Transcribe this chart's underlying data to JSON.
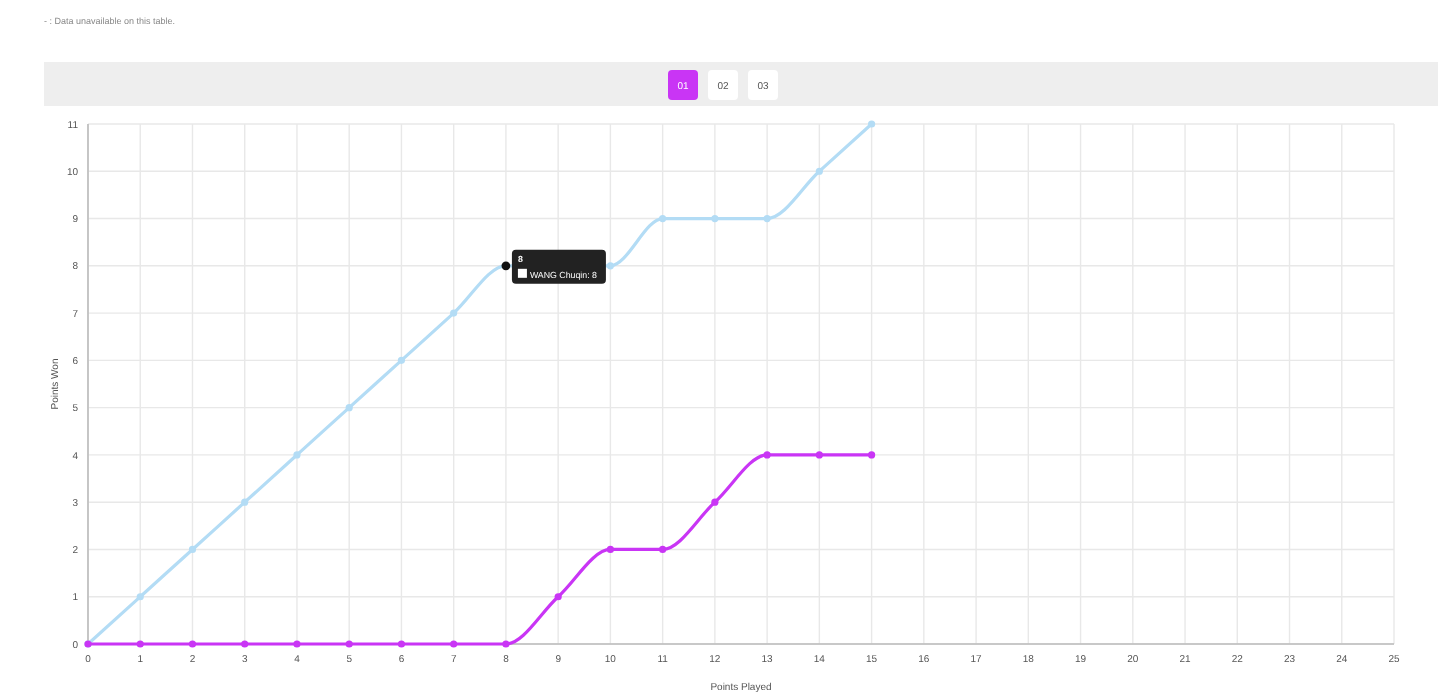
{
  "chart_data": {
    "type": "line",
    "xlabel": "Points Played",
    "ylabel": "Points Won",
    "x": [
      0,
      1,
      2,
      3,
      4,
      5,
      6,
      7,
      8,
      9,
      10,
      11,
      12,
      13,
      14,
      15
    ],
    "series": [
      {
        "color": "#b3dcf5",
        "values": [
          0,
          1,
          2,
          3,
          4,
          5,
          6,
          7,
          8,
          null,
          8,
          9,
          9,
          9,
          10,
          11
        ]
      },
      {
        "color": "#c935f5",
        "values": [
          0,
          0,
          0,
          0,
          0,
          0,
          0,
          0,
          0,
          1,
          2,
          2,
          3,
          4,
          4,
          4
        ]
      }
    ],
    "xlim": [
      0,
      25
    ],
    "xticks": [
      0,
      1,
      2,
      3,
      4,
      5,
      6,
      7,
      8,
      9,
      10,
      11,
      12,
      13,
      14,
      15,
      16,
      17,
      18,
      19,
      20,
      21,
      22,
      23,
      24,
      25
    ],
    "ylim": [
      0,
      11
    ],
    "yticks": [
      0,
      1,
      2,
      3,
      4,
      5,
      6,
      7,
      8,
      9,
      10,
      11
    ],
    "grid": true,
    "marker": "circle",
    "line_style": "solid",
    "annotations": [
      "- : Data unavailable on this table.",
      "01",
      "02",
      "03",
      {
        "text": "8",
        "x": 8,
        "y": 8
      },
      {
        "text": "WANG Chuqin: 8",
        "x": 8,
        "y": 8
      }
    ]
  }
}
